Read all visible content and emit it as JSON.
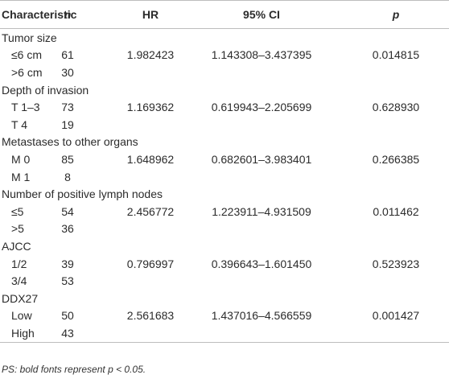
{
  "table": {
    "header": [
      "Characteristic",
      "n",
      "HR",
      "95% CI",
      "p"
    ],
    "groups": [
      {
        "label": "Tumor size",
        "rows": [
          [
            "≤6 cm",
            "61",
            "1.982423",
            "1.143308–3.437395",
            "0.014815"
          ],
          [
            ">6 cm",
            "30"
          ]
        ]
      },
      {
        "label": "Depth of invasion",
        "rows": [
          [
            "T 1–3",
            "73",
            "1.169362",
            "0.619943–2.205699",
            "0.628930"
          ],
          [
            "T 4",
            "19"
          ]
        ]
      },
      {
        "label": "Metastases to other organs",
        "rows": [
          [
            "M 0",
            "85",
            "1.648962",
            "0.682601–3.983401",
            "0.266385"
          ],
          [
            "M 1",
            "8"
          ]
        ]
      },
      {
        "label": "Number of positive lymph nodes",
        "rows": [
          [
            "≤5",
            "54",
            "2.456772",
            "1.223911–4.931509",
            "0.011462"
          ],
          [
            ">5",
            "36"
          ]
        ]
      },
      {
        "label": "AJCC",
        "rows": [
          [
            "1/2",
            "39",
            "0.796997",
            "0.396643–1.601450",
            "0.523923"
          ],
          [
            "3/4",
            "53"
          ]
        ]
      },
      {
        "label": "DDX27",
        "rows": [
          [
            "Low",
            "50",
            "2.561683",
            "1.437016–4.566559",
            "0.001427"
          ],
          [
            "High",
            "43"
          ]
        ]
      }
    ]
  },
  "footnote": "PS: bold fonts represent p < 0.05."
}
